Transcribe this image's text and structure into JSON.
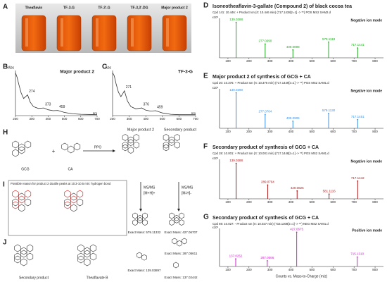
{
  "figure": {
    "panel_labels": [
      "A",
      "B",
      "C",
      "D",
      "E",
      "F",
      "G",
      "H",
      "I",
      "J"
    ],
    "vials": [
      "Theaflavin",
      "TF-3-G",
      "TF-3'-G",
      "TF-3,3'-DG",
      "Major product 2"
    ],
    "scheme": {
      "reactant_1": "GCG",
      "plus": "+",
      "reactant_2": "CA",
      "enzyme": "PPO",
      "product_major": "Major product 2",
      "product_secondary": "Secondary product",
      "msms_1": "MS/MS",
      "ion_1": "[M+H]+",
      "msms_2": "MS/MS",
      "ion_2": "[M-H]-",
      "exact_masses": [
        "Exact Mass: 579.11332",
        "Exact Mass: 139.03897",
        "Exact Mass: 427.06707",
        "Exact Mass: 287.05611",
        "Exact Mass: 137.02442"
      ]
    },
    "note": "Possible reason for product 2 double peaks at 10.3-10.5 min: hydrogen bond",
    "comparison": [
      "Secondary product",
      "Theaflavate B"
    ]
  },
  "chart_data": [
    {
      "type": "line",
      "title": "Major product 2",
      "y_label": "Abs",
      "x_label": "nm",
      "color": "#333333",
      "x": [
        200,
        210,
        220,
        235,
        250,
        262,
        274,
        290,
        310,
        340,
        373,
        400,
        430,
        459,
        500,
        550,
        600,
        700
      ],
      "values": [
        0.95,
        0.85,
        0.7,
        0.5,
        0.38,
        0.42,
        0.46,
        0.3,
        0.2,
        0.16,
        0.17,
        0.13,
        0.11,
        0.115,
        0.07,
        0.04,
        0.03,
        0.02
      ],
      "xlim": [
        200,
        700
      ],
      "xticks": [
        200,
        300,
        400,
        500,
        600,
        700
      ],
      "ylim": [
        0,
        1
      ],
      "peaks": [
        274,
        373,
        459
      ]
    },
    {
      "type": "line",
      "title": "TF-3-G",
      "y_label": "Abs",
      "x_label": "nm",
      "color": "#333333",
      "x": [
        200,
        210,
        220,
        235,
        250,
        260,
        271,
        290,
        310,
        340,
        376,
        400,
        430,
        459,
        500,
        550,
        600,
        700
      ],
      "values": [
        0.95,
        0.88,
        0.72,
        0.52,
        0.42,
        0.48,
        0.55,
        0.32,
        0.2,
        0.15,
        0.17,
        0.12,
        0.1,
        0.11,
        0.06,
        0.03,
        0.02,
        0.02
      ],
      "xlim": [
        200,
        700
      ],
      "xticks": [
        200,
        300,
        400,
        500,
        600,
        700
      ],
      "ylim": [
        0,
        1
      ],
      "peaks": [
        271,
        376,
        459
      ]
    },
    {
      "type": "spectrum",
      "title": "Isoneotheaflavin-3-gallate (Compound 2) of black cocoa tea",
      "subtitle": "Cpd 141: 10.446: + Product Ion (rt: 10.446 min) (717.1438[z=1] -> **) POS MS2 SAM2.d",
      "y_unit": "x10³",
      "annotation": "Negative ion mode",
      "color": "#22a822",
      "x": [
        139.0388,
        277.069,
        409.0898,
        579.1118,
        717.1441
      ],
      "x_labels": [
        "139.0388",
        "277.0690",
        "409.0898",
        "579.1118",
        "717.1441"
      ],
      "values": [
        0.9,
        0.35,
        0.2,
        0.4,
        0.25
      ],
      "xlim": [
        60,
        840
      ],
      "xticks": [
        100,
        200,
        300,
        400,
        500,
        600,
        700,
        800
      ],
      "ylim": [
        0,
        1
      ]
    },
    {
      "type": "spectrum",
      "title": "Major product 2 of synthesis of GCG + CA",
      "subtitle": "Cpd 20: 10.376: + Product Ion (rt: 10.376 min) (717.1449[z=1] -> **) POS MS2 SAM1.d",
      "y_unit": "x10³",
      "annotation": "Negative ion mode",
      "color": "#3a8fe0",
      "x": [
        139.039,
        277.0704,
        409.0905,
        579.113,
        717.1451
      ],
      "x_labels": [
        "139.0390",
        "277.0704",
        "409.0905",
        "579.1130",
        "717.1451"
      ],
      "values": [
        0.9,
        0.35,
        0.18,
        0.38,
        0.22
      ],
      "xlim": [
        60,
        840
      ],
      "xticks": [
        100,
        200,
        300,
        400,
        500,
        600,
        700,
        800
      ],
      "ylim": [
        0,
        1
      ]
    },
    {
      "type": "spectrum",
      "title": "Secondary product of synthesis of GCG + CA",
      "subtitle": "Cpd 28: 10.001: + Product Ion (rt: 10.001 min) (717.1448[z=1] -> **) POS MS2 SAM1.d",
      "y_unit": "x10³",
      "annotation": "Negative ion mode",
      "color": "#b01818",
      "x": [
        139.0388,
        289.0704,
        429.0825,
        581.1116,
        717.1442
      ],
      "x_labels": [
        "139.0388",
        "289.0704",
        "429.0825",
        "581.1116",
        "717.1442"
      ],
      "values": [
        0.9,
        0.35,
        0.2,
        0.12,
        0.45
      ],
      "xlim": [
        60,
        840
      ],
      "xticks": [
        100,
        200,
        300,
        400,
        500,
        600,
        700,
        800
      ],
      "ylim": [
        0,
        1
      ]
    },
    {
      "type": "spectrum",
      "title": "Secondary product of synthesis of GCG + CA",
      "subtitle": "Cpd 69: 10.027: - Product Ion (rt: 10.027 min) (715.1308[z=1] -> **) NEG MS2 SAM1.d",
      "y_unit": "x10³",
      "annotation": "Positive ion mode",
      "color": "#d020d0",
      "x_label": "Counts vs. Mass-to-Charge (m/z)",
      "x": [
        137.0252,
        287.0566,
        427.0675,
        715.131
      ],
      "x_labels": [
        "137.0252",
        "287.0566",
        "427.0675",
        "715.1310"
      ],
      "values": [
        0.2,
        0.15,
        0.9,
        0.25
      ],
      "xlim": [
        60,
        840
      ],
      "xticks": [
        100,
        200,
        300,
        400,
        500,
        600,
        700,
        800
      ],
      "ylim": [
        0,
        1
      ]
    }
  ]
}
